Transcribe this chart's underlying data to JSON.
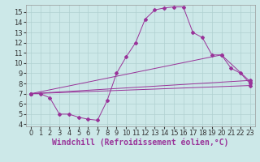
{
  "xlabel": "Windchill (Refroidissement éolien,°C)",
  "xlim": [
    -0.5,
    23.5
  ],
  "ylim": [
    3.8,
    15.7
  ],
  "yticks": [
    4,
    5,
    6,
    7,
    8,
    9,
    10,
    11,
    12,
    13,
    14,
    15
  ],
  "xticks": [
    0,
    1,
    2,
    3,
    4,
    5,
    6,
    7,
    8,
    9,
    10,
    11,
    12,
    13,
    14,
    15,
    16,
    17,
    18,
    19,
    20,
    21,
    22,
    23
  ],
  "bg_color": "#cce8e8",
  "grid_color": "#b0d0d0",
  "line_color": "#993399",
  "line1_x": [
    0,
    1,
    2,
    3,
    4,
    5,
    6,
    7,
    8,
    9,
    10,
    11,
    12,
    13,
    14,
    15,
    16,
    17,
    18,
    19,
    20,
    21,
    22,
    23
  ],
  "line1_y": [
    7.0,
    7.0,
    6.6,
    5.0,
    5.0,
    4.7,
    4.5,
    4.4,
    6.3,
    9.0,
    10.6,
    12.0,
    14.3,
    15.2,
    15.4,
    15.5,
    15.5,
    13.0,
    12.5,
    10.8,
    10.8,
    9.5,
    9.0,
    8.0
  ],
  "line2_x": [
    0,
    23
  ],
  "line2_y": [
    7.0,
    7.8
  ],
  "line3_x": [
    0,
    23
  ],
  "line3_y": [
    7.0,
    8.3
  ],
  "line4_x": [
    0,
    20,
    23
  ],
  "line4_y": [
    7.0,
    10.8,
    8.2
  ],
  "xlabel_fontsize": 7,
  "tick_fontsize": 6,
  "marker": "D",
  "markersize": 2.0
}
